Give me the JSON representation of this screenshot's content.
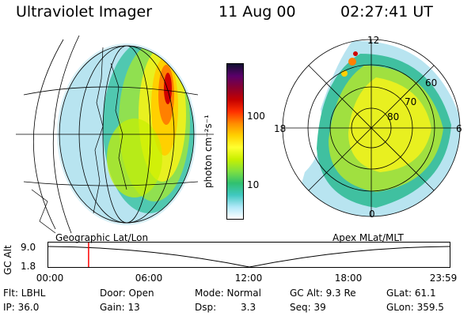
{
  "header": {
    "instrument": "Ultraviolet Imager",
    "date": "11 Aug 00",
    "time": "02:27:41 UT"
  },
  "colorbar": {
    "ticks": [
      "100",
      "10"
    ],
    "unit_label": "photon cm⁻²s⁻¹",
    "colors": [
      "#101030",
      "#5a006a",
      "#8a0030",
      "#c40000",
      "#ff3000",
      "#ff8c00",
      "#ffd000",
      "#ffff30",
      "#c8f000",
      "#80e040",
      "#30c070",
      "#40c8c0",
      "#b0e8f8",
      "#ffffff"
    ]
  },
  "geo_panel": {
    "label": "Geographic Lat/Lon"
  },
  "polar_panel": {
    "label": "Apex MLat/MLT",
    "mlt_labels": {
      "top": "12",
      "left": "18",
      "right": "6",
      "bottom": "0"
    },
    "lat_labels": [
      "60",
      "70",
      "80"
    ]
  },
  "alt_plot": {
    "ylabel": "GC Alt",
    "yticks": [
      "9.0",
      "1.8"
    ],
    "xticks": [
      "00:00",
      "06:00",
      "12:00",
      "18:00",
      "23:59"
    ],
    "marker_time": "02:27",
    "marker_color": "#ff0000"
  },
  "footer": {
    "flt": "Flt: LBHL",
    "ip": "IP: 36.0",
    "door": "Door: Open",
    "gain": "Gain: 13",
    "mode": "Mode: Normal",
    "dsp_label": "Dsp:",
    "dsp_value": "3.3",
    "gcalt": "GC Alt: 9.3 Re",
    "seq": "Seq: 39",
    "glat": "GLat:  61.1",
    "glon": "GLon: 359.5"
  }
}
